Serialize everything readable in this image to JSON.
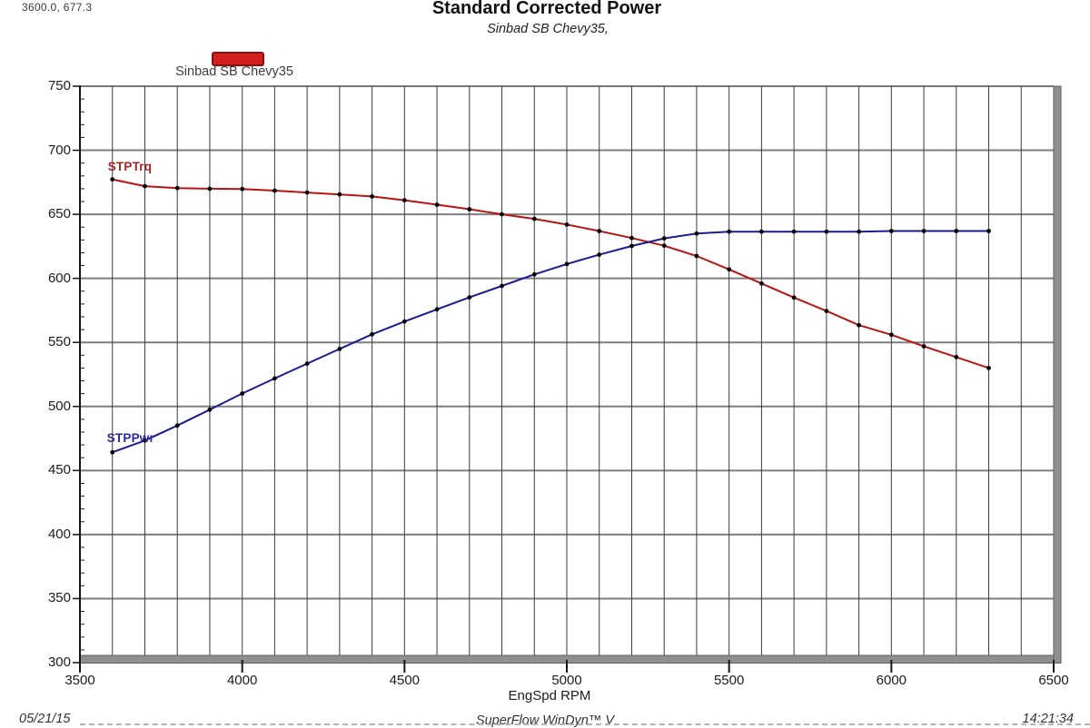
{
  "header": {
    "cursor_readout": "3600.0, 677.3"
  },
  "chart_data": {
    "type": "line",
    "title": "Standard Corrected Power",
    "subtitle": "Sinbad SB Chevy35,",
    "xlabel": "EngSpd RPM",
    "ylabel": "",
    "xlim": [
      3500,
      6500
    ],
    "ylim": [
      300,
      750
    ],
    "x_ticks": [
      3500,
      4000,
      4500,
      5000,
      5500,
      6000,
      6500
    ],
    "y_ticks": [
      750,
      700,
      650,
      600,
      550,
      500,
      450,
      400,
      350,
      300
    ],
    "grid": {
      "x_minor_step": 100,
      "y_major_step": 50,
      "y_minor_tick_step": 10,
      "grid_on": true
    },
    "legend": {
      "label": "Sinbad SB Chevy35",
      "bar_color": "#d41f1f",
      "bar_border": "#8c1010",
      "position": "top-left"
    },
    "x": [
      3600,
      3700,
      3800,
      3900,
      4000,
      4100,
      4200,
      4300,
      4400,
      4500,
      4600,
      4700,
      4800,
      4900,
      5000,
      5100,
      5200,
      5300,
      5400,
      5500,
      5600,
      5700,
      5800,
      5900,
      6000,
      6100,
      6200,
      6300
    ],
    "series": [
      {
        "name": "STPTrq",
        "color": "#b81414",
        "marker_color": "#000000",
        "values": [
          677.3,
          672.0,
          670.5,
          670.0,
          669.8,
          668.5,
          667.0,
          665.5,
          664.0,
          661.0,
          657.5,
          654.0,
          650.0,
          646.5,
          642.0,
          637.0,
          631.5,
          625.5,
          617.5,
          607.0,
          596.0,
          585.0,
          574.5,
          563.5,
          556.0,
          547.0,
          538.5,
          530.0
        ]
      },
      {
        "name": "STPPwr",
        "color": "#1b1b96",
        "marker_color": "#000000",
        "values": [
          464.2,
          473.4,
          485.1,
          497.5,
          510.1,
          521.9,
          533.4,
          544.9,
          556.3,
          566.3,
          575.8,
          585.2,
          594.1,
          603.1,
          611.2,
          618.5,
          625.3,
          631.2,
          635.0,
          636.5,
          636.5,
          636.5,
          636.5,
          636.5,
          637.0,
          637.0,
          637.0,
          637.0
        ]
      }
    ]
  },
  "footer": {
    "date": "05/21/15",
    "software": "SuperFlow WinDyn™ V",
    "time": "14:21:34"
  }
}
